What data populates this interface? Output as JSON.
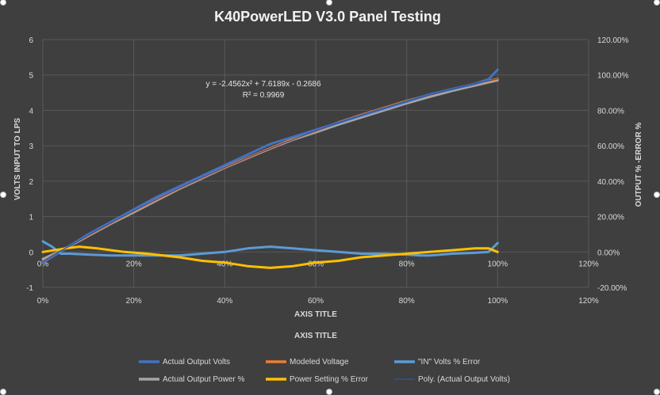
{
  "chart_data": {
    "type": "line",
    "title": "K40PowerLED V3.0 Panel Testing",
    "y_left_label": "VOLTS INPUT TO LPS",
    "y_right_label": "OUTPUT % -ERROR %",
    "x_label_primary": "AXIS TITLE",
    "x_label_secondary": "AXIS TITLE",
    "y_left_ticks": [
      "-1",
      "0",
      "1",
      "2",
      "3",
      "4",
      "5",
      "6"
    ],
    "y_right_ticks": [
      "-20.00%",
      "0.00%",
      "20.00%",
      "40.00%",
      "60.00%",
      "80.00%",
      "100.00%",
      "120.00%"
    ],
    "x_ticks_secondary": [
      "0%",
      "20%",
      "40%",
      "60%",
      "80%",
      "100%",
      "120%"
    ],
    "x_ticks_primary": [
      "0%",
      "20%",
      "40%",
      "60%",
      "80%",
      "100%",
      "120%"
    ],
    "y_left_range": [
      -1,
      6
    ],
    "y_right_range": [
      -0.2,
      1.2
    ],
    "x_range": [
      0,
      1.2
    ],
    "trendline_equation": "y = -2.4562x² + 7.6189x - 0.2686",
    "trendline_r2": "R² = 0.9969",
    "grid": true,
    "legend_position": "bottom",
    "series": [
      {
        "name": "Actual Output Volts",
        "axis": "left",
        "color": "#4472c4",
        "x": [
          0.0,
          0.05,
          0.1,
          0.15,
          0.2,
          0.25,
          0.3,
          0.35,
          0.4,
          0.45,
          0.5,
          0.55,
          0.6,
          0.65,
          0.7,
          0.75,
          0.8,
          0.85,
          0.9,
          0.95,
          0.98,
          1.0
        ],
        "y": [
          -0.3,
          0.1,
          0.5,
          0.85,
          1.2,
          1.55,
          1.85,
          2.15,
          2.45,
          2.75,
          3.05,
          3.25,
          3.45,
          3.65,
          3.85,
          4.05,
          4.25,
          4.45,
          4.6,
          4.75,
          4.88,
          5.15
        ]
      },
      {
        "name": "Modeled Voltage",
        "axis": "left",
        "color": "#ed7d31",
        "x": [
          0.0,
          0.05,
          0.1,
          0.15,
          0.2,
          0.25,
          0.3,
          0.35,
          0.4,
          0.45,
          0.5,
          0.55,
          0.6,
          0.65,
          0.7,
          0.75,
          0.8,
          0.85,
          0.9,
          0.95,
          1.0
        ],
        "y": [
          -0.27,
          0.11,
          0.47,
          0.82,
          1.16,
          1.48,
          1.8,
          2.1,
          2.39,
          2.66,
          2.93,
          3.19,
          3.42,
          3.66,
          3.87,
          4.07,
          4.27,
          4.44,
          4.6,
          4.75,
          4.89
        ]
      },
      {
        "name": "\"IN\" Volts % Error",
        "axis": "right",
        "color": "#5b9bd5",
        "x": [
          0.0,
          0.02,
          0.04,
          0.06,
          0.1,
          0.15,
          0.2,
          0.25,
          0.3,
          0.35,
          0.4,
          0.45,
          0.5,
          0.55,
          0.6,
          0.65,
          0.7,
          0.75,
          0.8,
          0.83,
          0.85,
          0.9,
          0.95,
          0.98,
          1.0
        ],
        "y": [
          0.06,
          0.03,
          -0.01,
          -0.01,
          -0.015,
          -0.02,
          -0.02,
          -0.02,
          -0.02,
          -0.01,
          0.0,
          0.02,
          0.03,
          0.02,
          0.01,
          0.0,
          -0.01,
          -0.01,
          -0.015,
          -0.02,
          -0.02,
          -0.01,
          -0.005,
          0.0,
          0.05
        ]
      },
      {
        "name": "Actual Output Power %",
        "axis": "left",
        "color": "#a5a5a5",
        "x": [
          0.0,
          0.05,
          0.1,
          0.15,
          0.2,
          0.25,
          0.3,
          0.35,
          0.4,
          0.45,
          0.5,
          0.55,
          0.6,
          0.65,
          0.7,
          0.75,
          0.8,
          0.85,
          0.9,
          0.95,
          1.0
        ],
        "y": [
          -0.2,
          0.1,
          0.45,
          0.8,
          1.12,
          1.45,
          1.78,
          2.08,
          2.38,
          2.65,
          2.92,
          3.17,
          3.38,
          3.6,
          3.8,
          4.0,
          4.2,
          4.38,
          4.55,
          4.7,
          4.85
        ]
      },
      {
        "name": "Power Setting % Error",
        "axis": "right",
        "color": "#ffc000",
        "x": [
          0.0,
          0.05,
          0.08,
          0.12,
          0.18,
          0.23,
          0.3,
          0.35,
          0.4,
          0.45,
          0.5,
          0.55,
          0.6,
          0.65,
          0.7,
          0.75,
          0.8,
          0.85,
          0.9,
          0.95,
          0.98,
          1.0
        ],
        "y": [
          0.0,
          0.02,
          0.03,
          0.02,
          0.0,
          -0.01,
          -0.03,
          -0.05,
          -0.06,
          -0.08,
          -0.09,
          -0.08,
          -0.06,
          -0.05,
          -0.03,
          -0.02,
          -0.01,
          0.0,
          0.01,
          0.02,
          0.02,
          0.0
        ]
      },
      {
        "name": "Poly. (Actual Output Volts)",
        "axis": "left",
        "color": "#2f5597",
        "trend": true,
        "coeffs": [
          -2.4562,
          7.6189,
          -0.2686
        ]
      }
    ]
  }
}
